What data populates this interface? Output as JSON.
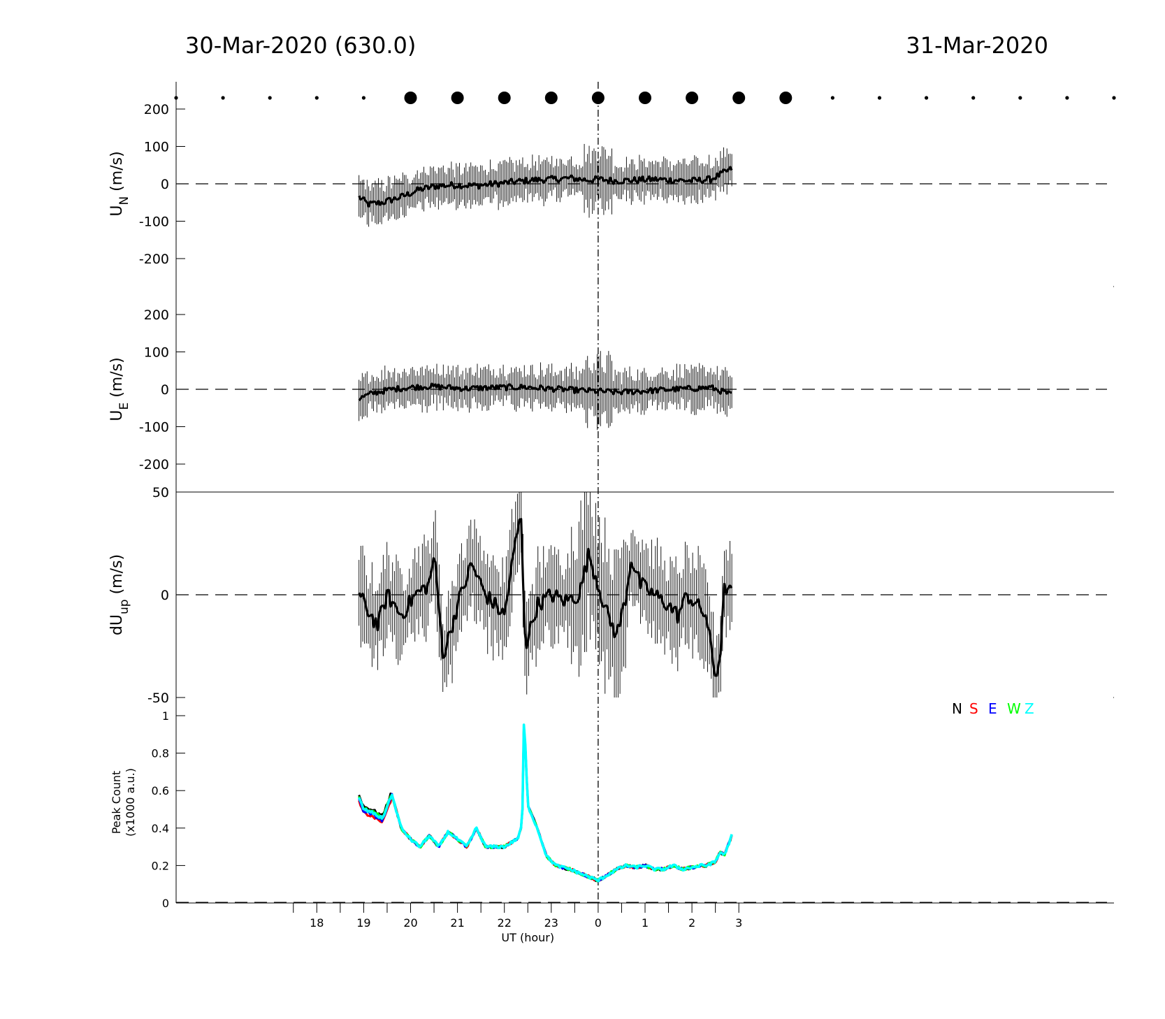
{
  "header": {
    "left_title": "30-Mar-2020 (630.0)",
    "right_title": "31-Mar-2020"
  },
  "chart_data": [
    {
      "type": "scatter",
      "panel": "sky-dots",
      "x": [
        15,
        16,
        17,
        18,
        19,
        20,
        21,
        22,
        23,
        24,
        25,
        26,
        27,
        28,
        29,
        30,
        31,
        32,
        33,
        34,
        35
      ],
      "marker_size": [
        "small",
        "small",
        "small",
        "small",
        "small",
        "large",
        "large",
        "large",
        "large",
        "large",
        "large",
        "large",
        "large",
        "large",
        "small",
        "small",
        "small",
        "small",
        "small",
        "small",
        "small"
      ]
    },
    {
      "type": "line",
      "panel": "UN",
      "ylabel_main": "U",
      "ylabel_sub": "N",
      "ylabel_unit": " (m/s)",
      "yticks": [
        "200",
        "100",
        "0",
        "-100",
        "-200"
      ],
      "ylim": [
        -250,
        250
      ],
      "x_range": [
        18.9,
        26.85
      ],
      "trend": [
        [
          18.9,
          -35
        ],
        [
          19.1,
          -55
        ],
        [
          19.4,
          -50
        ],
        [
          19.8,
          -35
        ],
        [
          20.2,
          -15
        ],
        [
          20.6,
          -5
        ],
        [
          21.0,
          -3
        ],
        [
          21.4,
          -5
        ],
        [
          21.8,
          0
        ],
        [
          22.2,
          5
        ],
        [
          22.6,
          10
        ],
        [
          23.0,
          12
        ],
        [
          23.4,
          15
        ],
        [
          23.8,
          10
        ],
        [
          24.0,
          12
        ],
        [
          24.4,
          8
        ],
        [
          24.8,
          10
        ],
        [
          25.2,
          12
        ],
        [
          25.6,
          10
        ],
        [
          26.0,
          8
        ],
        [
          26.4,
          12
        ],
        [
          26.85,
          40
        ]
      ]
    },
    {
      "type": "line",
      "panel": "UE",
      "ylabel_main": "U",
      "ylabel_sub": "E",
      "ylabel_unit": " (m/s)",
      "yticks": [
        "200",
        "100",
        "0",
        "-100",
        "-200"
      ],
      "ylim": [
        -250,
        250
      ],
      "x_range": [
        18.9,
        26.85
      ],
      "trend": [
        [
          18.9,
          -25
        ],
        [
          19.2,
          -10
        ],
        [
          19.6,
          0
        ],
        [
          20.0,
          5
        ],
        [
          20.4,
          8
        ],
        [
          20.8,
          5
        ],
        [
          21.2,
          2
        ],
        [
          21.6,
          4
        ],
        [
          22.0,
          5
        ],
        [
          22.4,
          6
        ],
        [
          22.8,
          3
        ],
        [
          23.2,
          0
        ],
        [
          23.6,
          -3
        ],
        [
          24.0,
          -5
        ],
        [
          24.4,
          -8
        ],
        [
          24.8,
          -6
        ],
        [
          25.2,
          -3
        ],
        [
          25.6,
          0
        ],
        [
          26.0,
          2
        ],
        [
          26.4,
          5
        ],
        [
          26.85,
          -15
        ]
      ]
    },
    {
      "type": "line",
      "panel": "dUup",
      "ylabel_main": "dU",
      "ylabel_sub": "up",
      "ylabel_unit": " (m/s)",
      "yticks": [
        "50",
        "0",
        "-50"
      ],
      "ylim": [
        -50,
        50
      ],
      "x_range": [
        18.9,
        26.85
      ],
      "trend": [
        [
          18.9,
          0
        ],
        [
          19.1,
          -8
        ],
        [
          19.3,
          -15
        ],
        [
          19.5,
          0
        ],
        [
          19.8,
          -10
        ],
        [
          20.1,
          0
        ],
        [
          20.4,
          5
        ],
        [
          20.5,
          20
        ],
        [
          20.7,
          -30
        ],
        [
          21.0,
          -5
        ],
        [
          21.3,
          15
        ],
        [
          21.6,
          0
        ],
        [
          22.0,
          -10
        ],
        [
          22.2,
          20
        ],
        [
          22.35,
          40
        ],
        [
          22.45,
          -25
        ],
        [
          22.7,
          -5
        ],
        [
          23.0,
          0
        ],
        [
          23.3,
          -3
        ],
        [
          23.6,
          0
        ],
        [
          23.8,
          20
        ],
        [
          24.0,
          5
        ],
        [
          24.2,
          -10
        ],
        [
          24.4,
          -20
        ],
        [
          24.6,
          0
        ],
        [
          24.7,
          18
        ],
        [
          24.9,
          5
        ],
        [
          25.2,
          0
        ],
        [
          25.5,
          -5
        ],
        [
          25.7,
          -10
        ],
        [
          25.9,
          0
        ],
        [
          26.1,
          -5
        ],
        [
          26.3,
          -10
        ],
        [
          26.5,
          -40
        ],
        [
          26.6,
          -30
        ],
        [
          26.7,
          5
        ],
        [
          26.85,
          0
        ]
      ]
    },
    {
      "type": "line",
      "panel": "peak-count",
      "ylabel_line1": "Peak Count",
      "ylabel_line2": "(x1000 a.u.)",
      "yticks": [
        "1",
        "0.8",
        "0.6",
        "0.4",
        "0.2",
        "0"
      ],
      "ylim": [
        0,
        1
      ],
      "legend": [
        "N",
        "S",
        "E",
        "W",
        "Z"
      ],
      "legend_colors": [
        "#000000",
        "#ff0000",
        "#0000ff",
        "#00ff00",
        "#00ffff"
      ],
      "legend_placement": "top-right",
      "series_base": [
        [
          18.9,
          0.56
        ],
        [
          19.0,
          0.5
        ],
        [
          19.2,
          0.48
        ],
        [
          19.4,
          0.45
        ],
        [
          19.6,
          0.58
        ],
        [
          19.8,
          0.4
        ],
        [
          20.0,
          0.34
        ],
        [
          20.2,
          0.3
        ],
        [
          20.4,
          0.36
        ],
        [
          20.6,
          0.3
        ],
        [
          20.8,
          0.38
        ],
        [
          21.0,
          0.34
        ],
        [
          21.2,
          0.3
        ],
        [
          21.4,
          0.4
        ],
        [
          21.6,
          0.3
        ],
        [
          21.8,
          0.3
        ],
        [
          22.0,
          0.3
        ],
        [
          22.2,
          0.33
        ],
        [
          22.3,
          0.35
        ],
        [
          22.38,
          0.42
        ],
        [
          22.42,
          1.0
        ],
        [
          22.5,
          0.52
        ],
        [
          22.7,
          0.4
        ],
        [
          22.9,
          0.25
        ],
        [
          23.1,
          0.2
        ],
        [
          23.4,
          0.18
        ],
        [
          23.7,
          0.15
        ],
        [
          24.0,
          0.12
        ],
        [
          24.2,
          0.15
        ],
        [
          24.4,
          0.18
        ],
        [
          24.6,
          0.2
        ],
        [
          24.8,
          0.19
        ],
        [
          25.0,
          0.2
        ],
        [
          25.2,
          0.18
        ],
        [
          25.4,
          0.18
        ],
        [
          25.6,
          0.2
        ],
        [
          25.8,
          0.18
        ],
        [
          26.0,
          0.19
        ],
        [
          26.2,
          0.2
        ],
        [
          26.3,
          0.2
        ],
        [
          26.5,
          0.22
        ],
        [
          26.6,
          0.27
        ],
        [
          26.7,
          0.26
        ],
        [
          26.85,
          0.36
        ]
      ],
      "xticks": [
        "18",
        "19",
        "20",
        "21",
        "22",
        "23",
        "0",
        "1",
        "2",
        "3"
      ],
      "xtick_values": [
        18,
        19,
        20,
        21,
        22,
        23,
        24,
        25,
        26,
        27
      ],
      "xlabel": "UT (hour)"
    }
  ]
}
